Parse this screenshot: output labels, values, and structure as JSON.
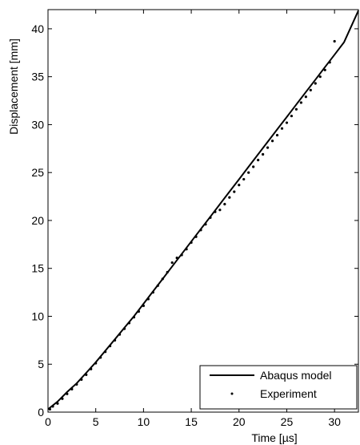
{
  "chart_data": {
    "type": "line",
    "title": "",
    "xlabel": "Time [µs]",
    "ylabel": "Displacement [mm]",
    "xlim": [
      0,
      32.5
    ],
    "ylim": [
      0,
      42
    ],
    "x_ticks": [
      0,
      5,
      10,
      15,
      20,
      25,
      30
    ],
    "y_ticks": [
      0,
      5,
      10,
      15,
      20,
      25,
      30,
      35,
      40
    ],
    "grid": false,
    "legend": {
      "position": "bottom-right",
      "entries": [
        "Abaqus model",
        "Experiment"
      ]
    },
    "series": [
      {
        "name": "Abaqus model",
        "style": "solid line",
        "color": "#000000",
        "x": [
          0,
          1,
          2,
          3,
          4,
          5,
          6,
          7,
          8,
          9,
          10,
          11,
          12,
          13,
          14,
          15,
          16,
          17,
          18,
          19,
          20,
          21,
          22,
          23,
          24,
          25,
          26,
          27,
          28,
          29,
          30,
          31,
          32.5
        ],
        "y": [
          0.3,
          1.1,
          2.1,
          3.0,
          4.1,
          5.2,
          6.4,
          7.6,
          8.8,
          10.0,
          11.3,
          12.6,
          13.9,
          15.2,
          16.5,
          17.8,
          19.1,
          20.4,
          21.7,
          23.0,
          24.3,
          25.6,
          26.9,
          28.2,
          29.5,
          30.8,
          32.1,
          33.4,
          34.7,
          36.0,
          37.3,
          38.6,
          41.9
        ]
      },
      {
        "name": "Experiment",
        "style": "dots",
        "color": "#000000",
        "x": [
          0.2,
          0.5,
          1.0,
          1.5,
          2.0,
          2.5,
          3.0,
          3.5,
          4.0,
          4.5,
          5.0,
          5.5,
          6.0,
          6.5,
          7.0,
          7.5,
          8.0,
          8.5,
          9.0,
          9.5,
          10.0,
          10.5,
          11.0,
          11.5,
          12.0,
          12.5,
          13.0,
          13.5,
          14.0,
          14.5,
          15.0,
          15.5,
          16.0,
          16.5,
          17.0,
          17.5,
          18.0,
          18.5,
          19.0,
          19.5,
          20.0,
          20.5,
          21.0,
          21.5,
          22.0,
          22.5,
          23.0,
          23.5,
          24.0,
          24.5,
          25.0,
          25.5,
          26.0,
          26.5,
          27.0,
          27.5,
          28.0,
          28.5,
          29.0,
          29.5,
          30.0
        ],
        "y": [
          0.3,
          0.6,
          0.9,
          1.4,
          1.9,
          2.4,
          2.9,
          3.4,
          3.9,
          4.5,
          5.1,
          5.7,
          6.3,
          6.9,
          7.5,
          8.1,
          8.7,
          9.3,
          9.9,
          10.5,
          11.1,
          11.8,
          12.5,
          13.2,
          13.9,
          14.6,
          15.6,
          16.1,
          16.4,
          17.0,
          17.7,
          18.3,
          19.0,
          19.6,
          20.3,
          20.9,
          21.1,
          21.7,
          22.4,
          23.0,
          23.7,
          24.3,
          25.0,
          25.6,
          26.3,
          26.9,
          27.6,
          28.3,
          28.9,
          29.6,
          30.2,
          30.9,
          31.6,
          32.3,
          32.9,
          33.6,
          34.3,
          35.0,
          35.7,
          36.5,
          38.7
        ]
      }
    ]
  }
}
